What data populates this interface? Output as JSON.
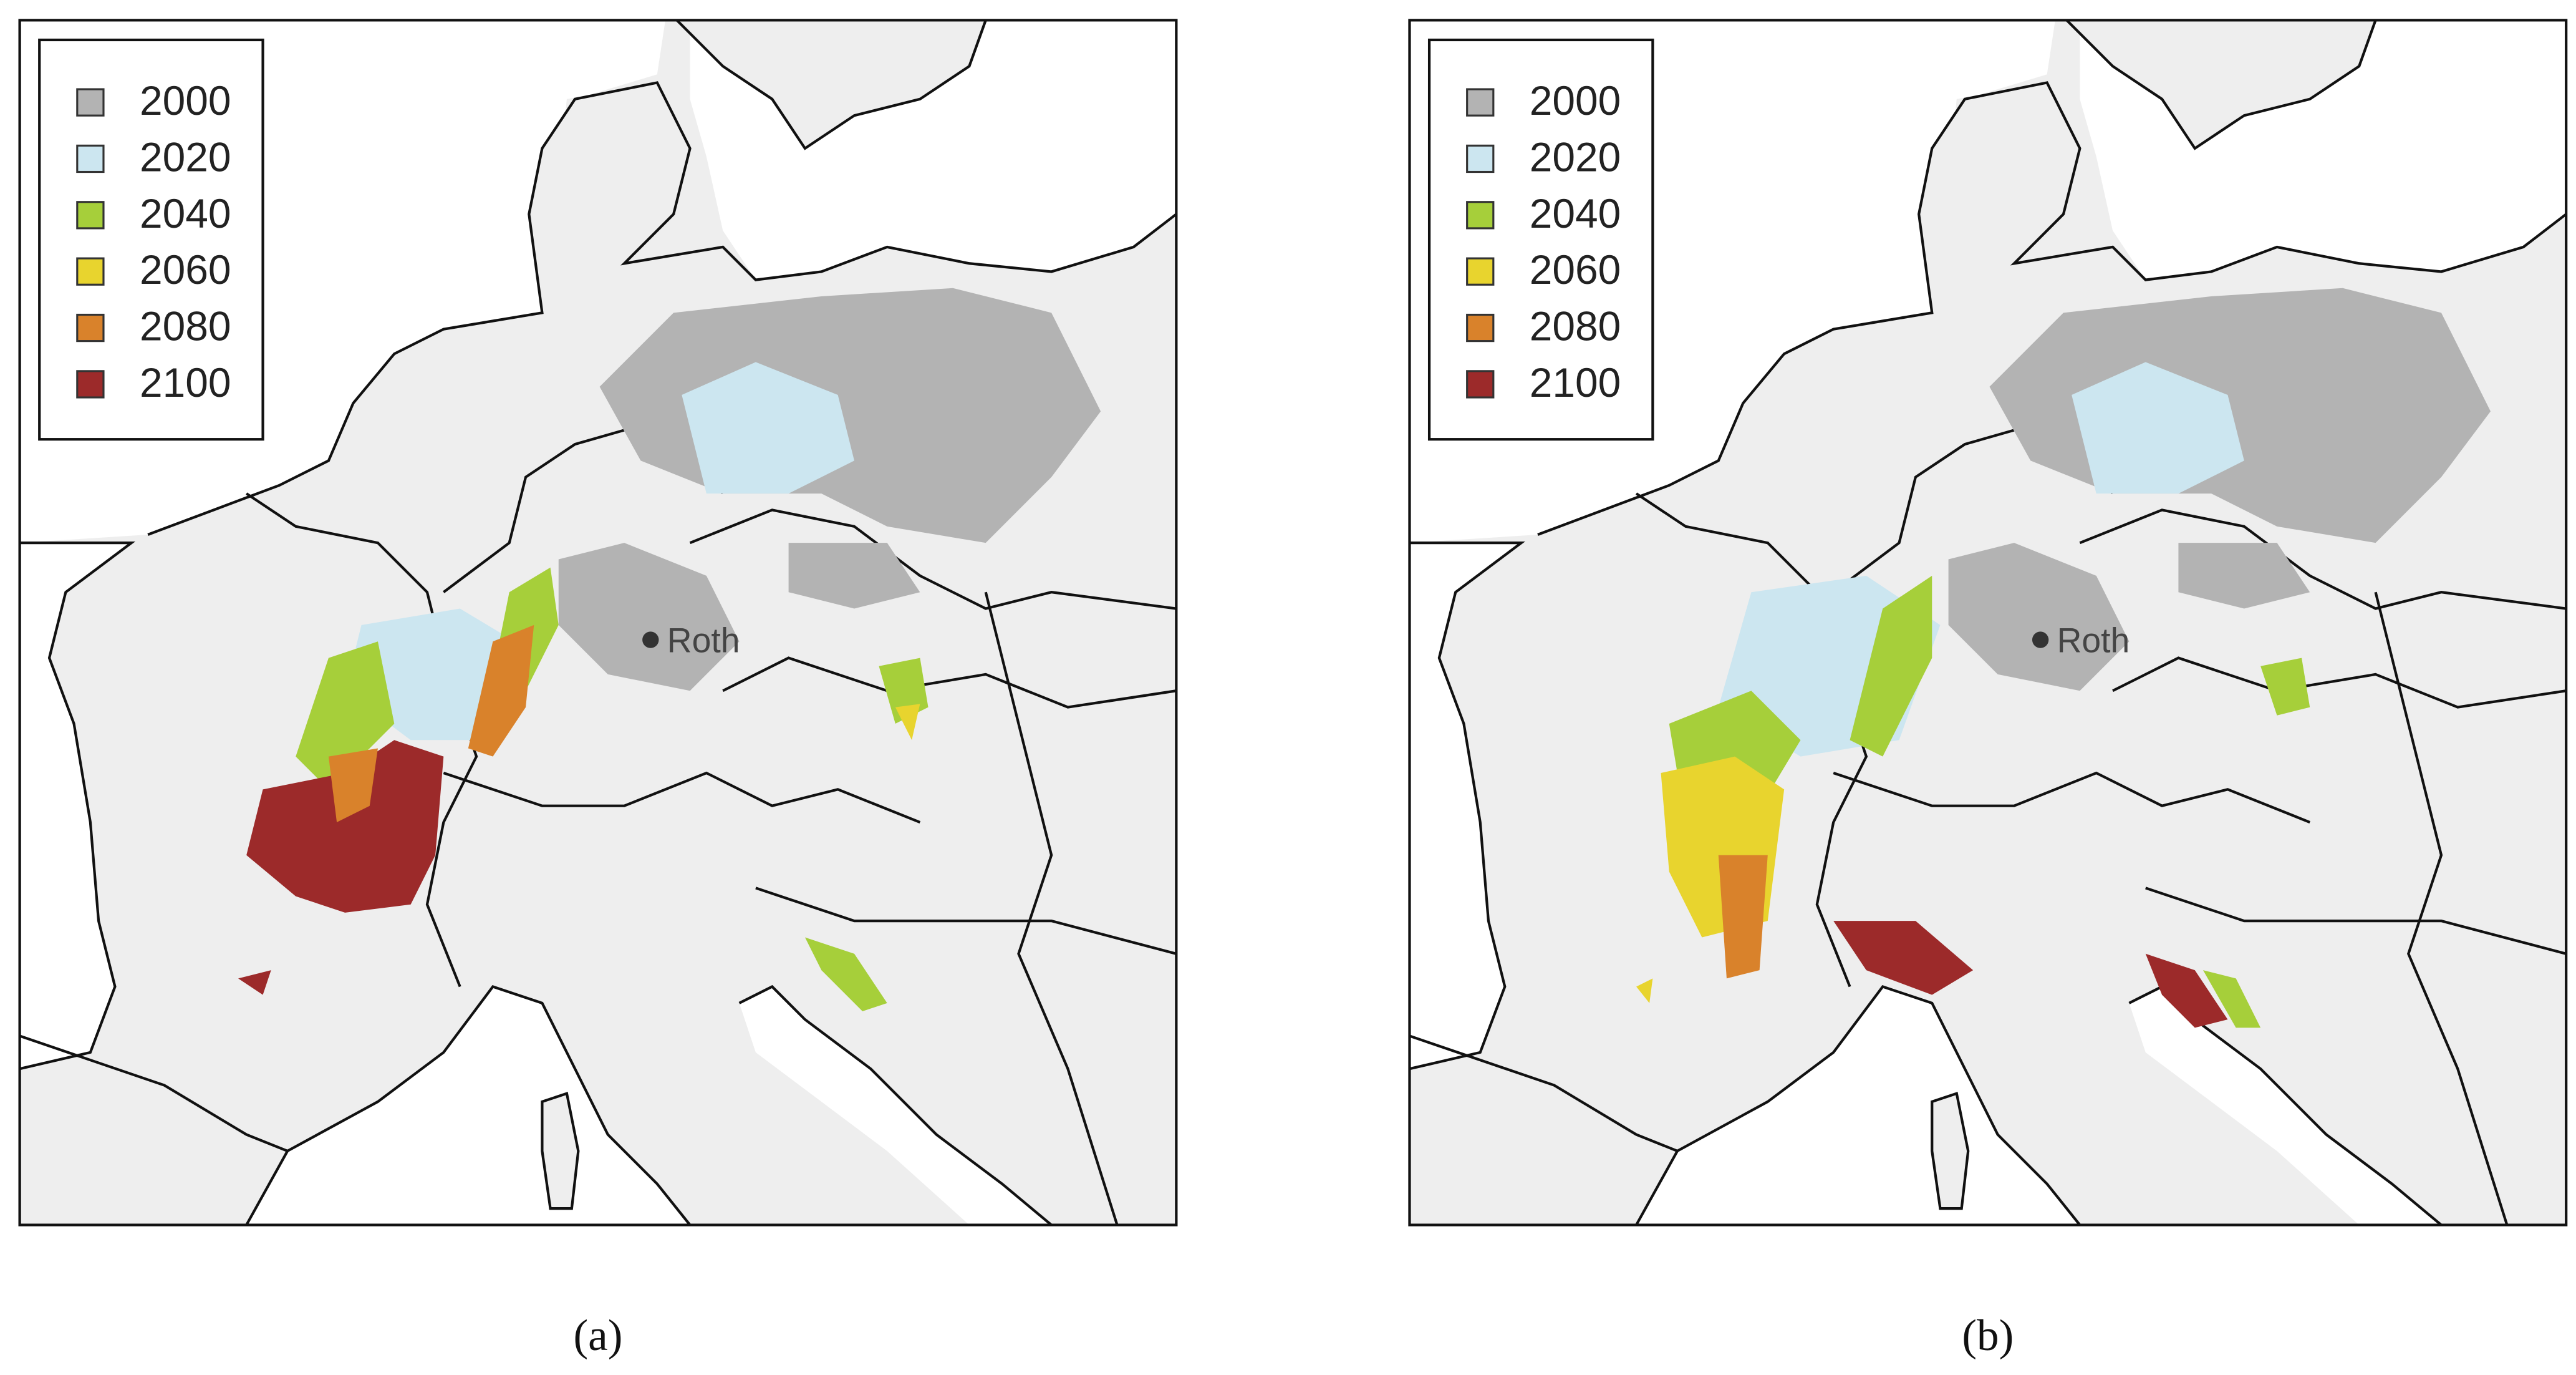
{
  "panels": [
    {
      "caption": "(a)",
      "city": "Roth",
      "legend": [
        {
          "label": "2000",
          "color": "#b3b3b3"
        },
        {
          "label": "2020",
          "color": "#cce6f0"
        },
        {
          "label": "2040",
          "color": "#a6cf3a"
        },
        {
          "label": "2060",
          "color": "#e8d42e"
        },
        {
          "label": "2080",
          "color": "#d9822b"
        },
        {
          "label": "2100",
          "color": "#9c2a2a"
        }
      ]
    },
    {
      "caption": "(b)",
      "city": "Roth",
      "legend": [
        {
          "label": "2000",
          "color": "#b3b3b3"
        },
        {
          "label": "2020",
          "color": "#cce6f0"
        },
        {
          "label": "2040",
          "color": "#a6cf3a"
        },
        {
          "label": "2060",
          "color": "#e8d42e"
        },
        {
          "label": "2080",
          "color": "#d9822b"
        },
        {
          "label": "2100",
          "color": "#9c2a2a"
        }
      ]
    }
  ]
}
